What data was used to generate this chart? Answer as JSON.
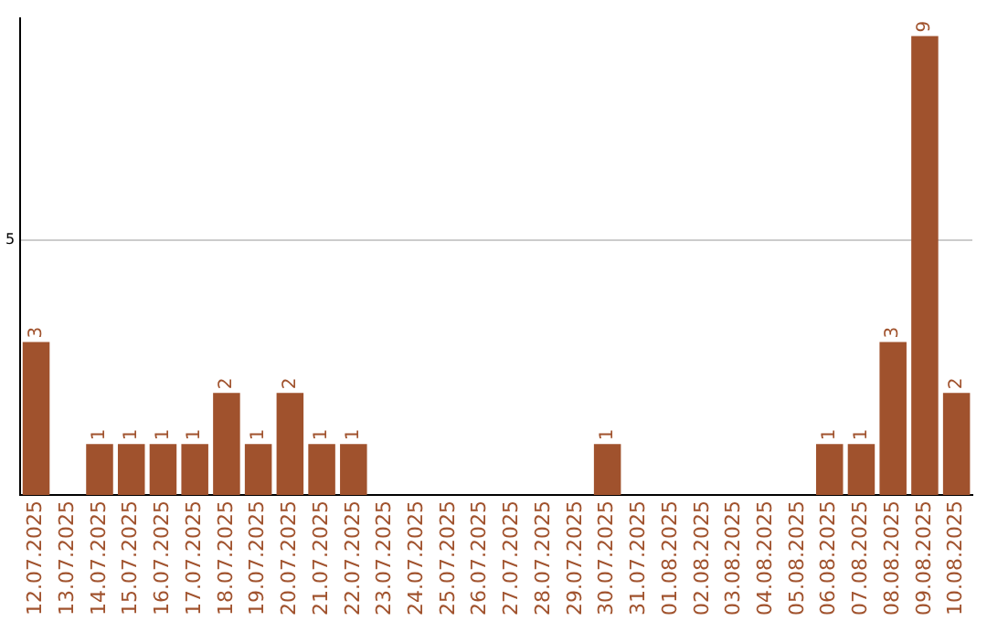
{
  "chart_data": {
    "type": "bar",
    "categories": [
      "12.07.2025",
      "13.07.2025",
      "14.07.2025",
      "15.07.2025",
      "16.07.2025",
      "17.07.2025",
      "18.07.2025",
      "19.07.2025",
      "20.07.2025",
      "21.07.2025",
      "22.07.2025",
      "23.07.2025",
      "24.07.2025",
      "25.07.2025",
      "26.07.2025",
      "27.07.2025",
      "28.07.2025",
      "29.07.2025",
      "30.07.2025",
      "31.07.2025",
      "01.08.2025",
      "02.08.2025",
      "03.08.2025",
      "04.08.2025",
      "05.08.2025",
      "06.08.2025",
      "07.08.2025",
      "08.08.2025",
      "09.08.2025",
      "10.08.2025"
    ],
    "values": [
      3,
      0,
      1,
      1,
      1,
      1,
      2,
      1,
      2,
      1,
      1,
      0,
      0,
      0,
      0,
      0,
      0,
      0,
      1,
      0,
      0,
      0,
      0,
      0,
      0,
      1,
      1,
      3,
      9,
      2
    ],
    "value_labels": [
      "3",
      null,
      "1",
      "1",
      "1",
      "1",
      "2",
      "1",
      "2",
      "1",
      "1",
      null,
      null,
      null,
      null,
      null,
      null,
      null,
      "1",
      null,
      null,
      null,
      null,
      null,
      null,
      "1",
      "1",
      "3",
      "9",
      "2"
    ],
    "color": "#a0522d",
    "ylim": [
      0,
      9.35
    ],
    "yticks": [
      5
    ],
    "grid": "y",
    "legend": false
  }
}
